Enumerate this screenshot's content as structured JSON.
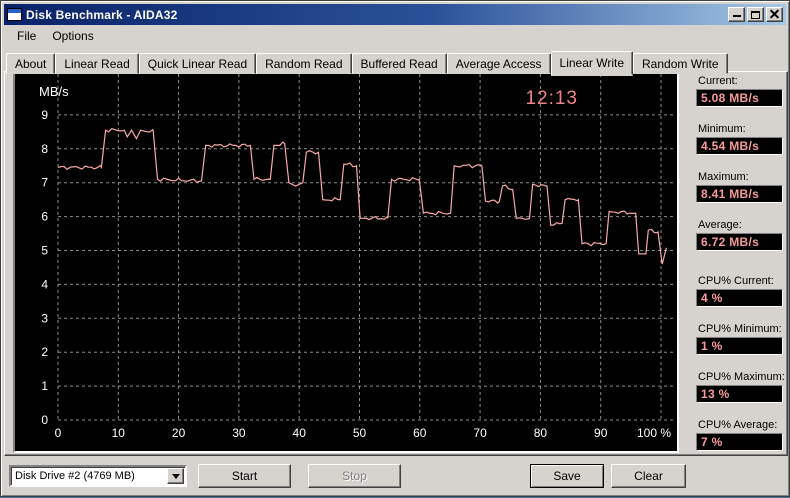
{
  "window": {
    "title": "Disk Benchmark - AIDA32",
    "icons": {
      "app": "app-window-icon",
      "minimize": "minimize-icon",
      "maximize": "maximize-icon",
      "close": "close-icon"
    }
  },
  "menu": {
    "items": [
      {
        "label": "File"
      },
      {
        "label": "Options"
      }
    ]
  },
  "tabs": {
    "items": [
      "About",
      "Linear Read",
      "Quick Linear Read",
      "Random Read",
      "Buffered Read",
      "Average Access",
      "Linear Write",
      "Random Write"
    ],
    "active": "Linear Write"
  },
  "chart_data": {
    "type": "line",
    "title": "Linear Write benchmark trace",
    "unit_label": "MB/s",
    "time_annotation": "12:13",
    "x_ticks": [
      0,
      10,
      20,
      30,
      40,
      50,
      60,
      70,
      80,
      90,
      100
    ],
    "x_tick_labels": [
      "0",
      "10",
      "20",
      "30",
      "40",
      "50",
      "60",
      "70",
      "80",
      "90",
      "100 %"
    ],
    "y_ticks": [
      0,
      1,
      2,
      3,
      4,
      5,
      6,
      7,
      8,
      9
    ],
    "xlim": [
      0,
      102.5
    ],
    "ylim": [
      0,
      10.2
    ],
    "grid": true,
    "legend": "none",
    "colors": {
      "bg": "#000000",
      "grid": "#8c8c8c",
      "line": "#f9a8a8",
      "text": "#ffffff",
      "annotation": "#ef8585"
    },
    "series": [
      {
        "name": "Linear Write MB/s",
        "points": [
          [
            0,
            7.45
          ],
          [
            7.2,
            7.45
          ],
          [
            7.9,
            8.55
          ],
          [
            11.0,
            8.55
          ],
          [
            11.5,
            8.35
          ],
          [
            12.2,
            8.55
          ],
          [
            13.0,
            8.3
          ],
          [
            13.7,
            8.55
          ],
          [
            15.8,
            8.5
          ],
          [
            16.5,
            7.1
          ],
          [
            23.8,
            7.05
          ],
          [
            24.5,
            8.1
          ],
          [
            31.9,
            8.1
          ],
          [
            32.5,
            7.1
          ],
          [
            35.2,
            7.1
          ],
          [
            35.8,
            8.1
          ],
          [
            37.6,
            8.15
          ],
          [
            38.3,
            7.0
          ],
          [
            39.4,
            6.9
          ],
          [
            40.6,
            7.0
          ],
          [
            41.2,
            7.9
          ],
          [
            43.2,
            7.9
          ],
          [
            43.9,
            6.5
          ],
          [
            46.8,
            6.5
          ],
          [
            47.4,
            7.55
          ],
          [
            49.5,
            7.5
          ],
          [
            50.1,
            5.95
          ],
          [
            54.7,
            5.95
          ],
          [
            55.3,
            7.1
          ],
          [
            59.9,
            7.1
          ],
          [
            60.6,
            6.1
          ],
          [
            65.1,
            6.1
          ],
          [
            65.7,
            7.5
          ],
          [
            70.3,
            7.5
          ],
          [
            70.9,
            6.45
          ],
          [
            73.2,
            6.45
          ],
          [
            73.7,
            6.9
          ],
          [
            75.4,
            6.8
          ],
          [
            76.0,
            5.95
          ],
          [
            78.2,
            5.95
          ],
          [
            78.7,
            6.95
          ],
          [
            81.1,
            6.9
          ],
          [
            81.7,
            5.75
          ],
          [
            83.6,
            5.8
          ],
          [
            84.1,
            6.5
          ],
          [
            86.3,
            6.5
          ],
          [
            86.9,
            5.2
          ],
          [
            90.9,
            5.2
          ],
          [
            91.4,
            6.15
          ],
          [
            95.8,
            6.1
          ],
          [
            96.3,
            4.9
          ],
          [
            97.5,
            4.9
          ],
          [
            97.9,
            5.6
          ],
          [
            99.5,
            5.55
          ],
          [
            100.2,
            4.6
          ],
          [
            100.9,
            5.08
          ]
        ]
      }
    ]
  },
  "stats": {
    "items": [
      {
        "label": "Current:",
        "value": "5.08 MB/s"
      },
      {
        "label": "Minimum:",
        "value": "4.54 MB/s"
      },
      {
        "label": "Maximum:",
        "value": "8.41 MB/s"
      },
      {
        "label": "Average:",
        "value": "6.72 MB/s"
      },
      {
        "label": "CPU% Current:",
        "value": "4 %"
      },
      {
        "label": "CPU% Minimum:",
        "value": "1 %"
      },
      {
        "label": "CPU% Maximum:",
        "value": "13 %"
      },
      {
        "label": "CPU% Average:",
        "value": "7 %"
      }
    ]
  },
  "footer": {
    "drive": {
      "value": "Disk Drive #2  (4769 MB)"
    },
    "buttons": [
      {
        "label": "Start",
        "enabled": true
      },
      {
        "label": "Stop",
        "enabled": false
      },
      {
        "label": "Save",
        "enabled": true
      },
      {
        "label": "Clear",
        "enabled": true
      }
    ]
  }
}
